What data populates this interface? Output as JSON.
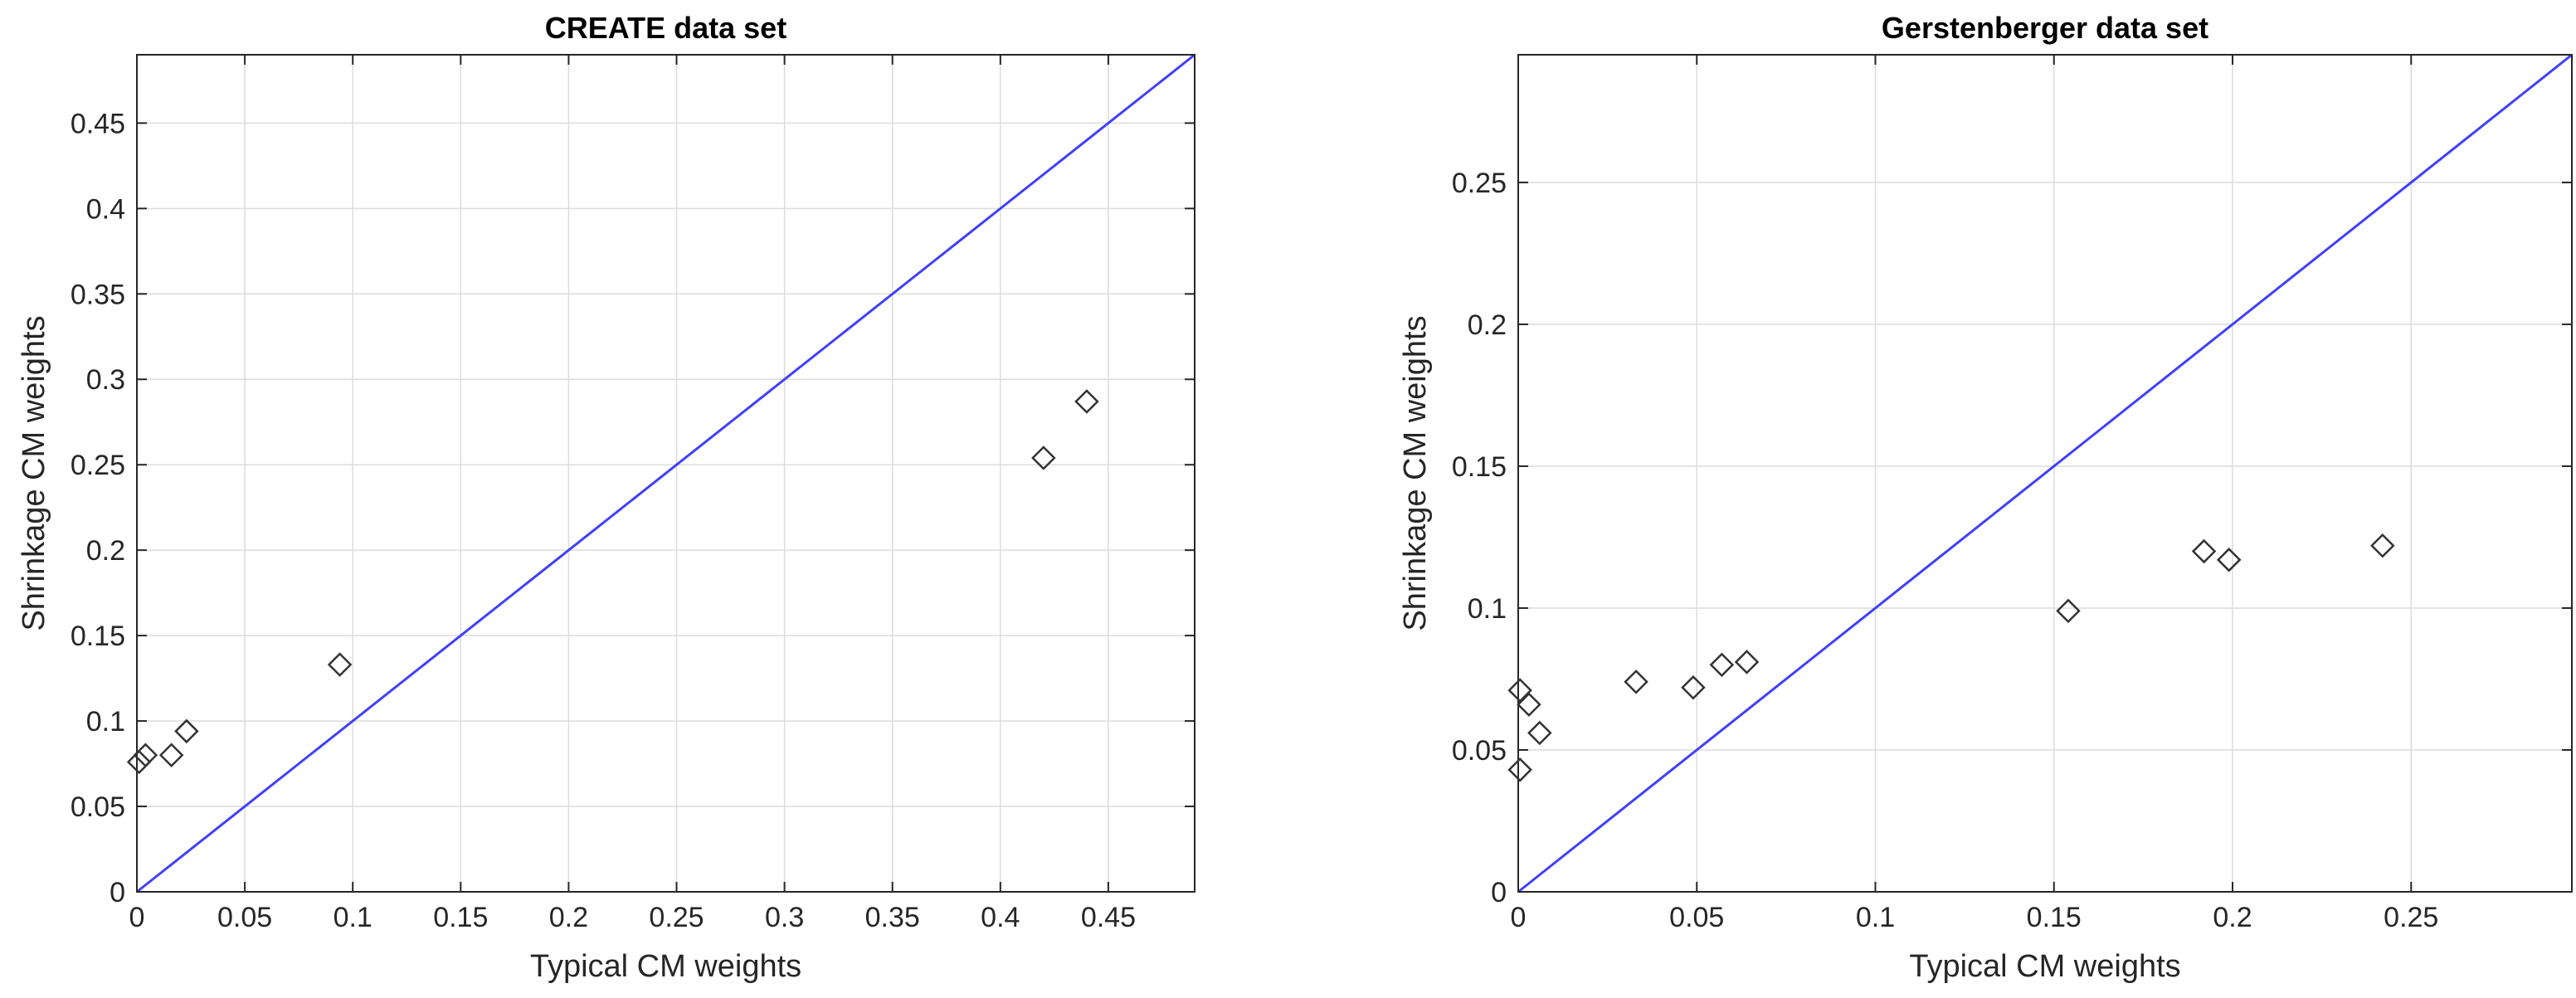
{
  "figure": {
    "background_color": "#ffffff",
    "axes_color": "#262626",
    "grid_color": "#dcdcdc",
    "marker_color": "#333333",
    "identity_line_color": "#4040ff"
  },
  "chart_data": [
    {
      "type": "scatter",
      "title": "CREATE data set",
      "xlabel": "Typical CM weights",
      "ylabel": "Shrinkage CM weights",
      "xlim": [
        0,
        0.49
      ],
      "ylim": [
        0,
        0.49
      ],
      "xticks": [
        0,
        0.05,
        0.1,
        0.15,
        0.2,
        0.25,
        0.3,
        0.35,
        0.4,
        0.45
      ],
      "yticks": [
        0,
        0.05,
        0.1,
        0.15,
        0.2,
        0.25,
        0.3,
        0.35,
        0.4,
        0.45
      ],
      "xtick_labels": [
        "0",
        "0.05",
        "0.1",
        "0.15",
        "0.2",
        "0.25",
        "0.3",
        "0.35",
        "0.4",
        "0.45"
      ],
      "ytick_labels": [
        "0",
        "0.05",
        "0.1",
        "0.15",
        "0.2",
        "0.25",
        "0.3",
        "0.35",
        "0.4",
        "0.45"
      ],
      "grid": true,
      "marker": "diamond",
      "reference_line": "y = x",
      "points": [
        {
          "x": 0.001,
          "y": 0.076
        },
        {
          "x": 0.004,
          "y": 0.08
        },
        {
          "x": 0.016,
          "y": 0.08
        },
        {
          "x": 0.023,
          "y": 0.094
        },
        {
          "x": 0.094,
          "y": 0.133
        },
        {
          "x": 0.42,
          "y": 0.254
        },
        {
          "x": 0.44,
          "y": 0.287
        }
      ]
    },
    {
      "type": "scatter",
      "title": "Gerstenberger data set",
      "xlabel": "Typical CM weights",
      "ylabel": "Shrinkage CM weights",
      "xlim": [
        0,
        0.295
      ],
      "ylim": [
        0,
        0.295
      ],
      "xticks": [
        0,
        0.05,
        0.1,
        0.15,
        0.2,
        0.25
      ],
      "yticks": [
        0,
        0.05,
        0.1,
        0.15,
        0.2,
        0.25
      ],
      "xtick_labels": [
        "0",
        "0.05",
        "0.1",
        "0.15",
        "0.2",
        "0.25"
      ],
      "ytick_labels": [
        "0",
        "0.05",
        "0.1",
        "0.15",
        "0.2",
        "0.25"
      ],
      "grid": true,
      "marker": "diamond",
      "reference_line": "y = x",
      "points": [
        {
          "x": 0.0005,
          "y": 0.043
        },
        {
          "x": 0.0005,
          "y": 0.071
        },
        {
          "x": 0.003,
          "y": 0.066
        },
        {
          "x": 0.006,
          "y": 0.056
        },
        {
          "x": 0.033,
          "y": 0.074
        },
        {
          "x": 0.049,
          "y": 0.072
        },
        {
          "x": 0.057,
          "y": 0.08
        },
        {
          "x": 0.064,
          "y": 0.081
        },
        {
          "x": 0.154,
          "y": 0.099
        },
        {
          "x": 0.192,
          "y": 0.12
        },
        {
          "x": 0.199,
          "y": 0.117
        },
        {
          "x": 0.242,
          "y": 0.122
        }
      ]
    }
  ]
}
